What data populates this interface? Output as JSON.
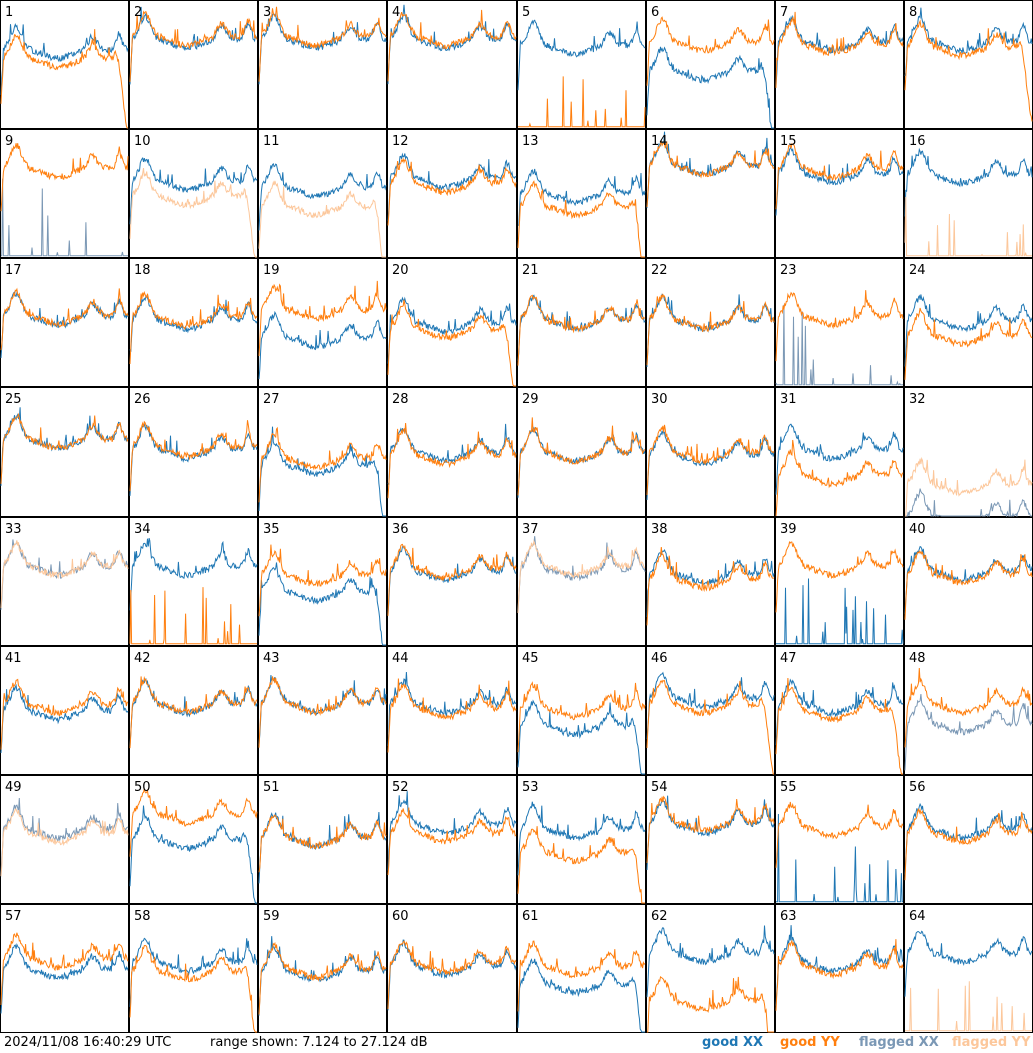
{
  "footer": {
    "timestamp": "2024/11/08 16:40:29 UTC",
    "range_text": "range shown: 7.124 to 27.124 dB"
  },
  "legend": [
    {
      "label": "good XX",
      "color": "#1f77b4"
    },
    {
      "label": "good YY",
      "color": "#ff7f0e"
    },
    {
      "label": "flagged XX",
      "color": "#7b98b5"
    },
    {
      "label": "flagged YY",
      "color": "#fcc79b"
    }
  ],
  "chart_data": {
    "type": "line",
    "grid_layout": {
      "rows": 8,
      "cols": 8
    },
    "ylim": [
      7.124,
      27.124
    ],
    "yunit": "dB",
    "series_names": [
      "good XX",
      "good YY",
      "flagged XX",
      "flagged YY"
    ],
    "colors": {
      "good_xx": "#1f77b4",
      "good_yy": "#ff7f0e",
      "flagged_xx": "#7b98b5",
      "flagged_yy": "#fcc79b"
    },
    "panels": [
      {
        "label": "1",
        "xx": "good",
        "yy": "good",
        "xx_level": 0.62,
        "yy_level": 0.55,
        "yy_rolloff": true
      },
      {
        "label": "2",
        "xx": "good",
        "yy": "good",
        "xx_level": 0.7,
        "yy_level": 0.72
      },
      {
        "label": "3",
        "xx": "good",
        "yy": "good",
        "xx_level": 0.7,
        "yy_level": 0.72
      },
      {
        "label": "4",
        "xx": "good",
        "yy": "good",
        "xx_level": 0.7,
        "yy_level": 0.72
      },
      {
        "label": "5",
        "xx": "good",
        "yy": "good",
        "xx_level": 0.65,
        "yy_level": 0.02,
        "yy_spikes": true
      },
      {
        "label": "6",
        "xx": "good",
        "yy": "good",
        "xx_level": 0.45,
        "yy_level": 0.68,
        "xx_rolloff": true
      },
      {
        "label": "7",
        "xx": "good",
        "yy": "good",
        "xx_level": 0.68,
        "yy_level": 0.66
      },
      {
        "label": "8",
        "xx": "good",
        "yy": "good",
        "xx_level": 0.68,
        "yy_level": 0.64,
        "yy_rolloff": true
      },
      {
        "label": "9",
        "xx": "flagged",
        "yy": "good",
        "xx_level": 0.05,
        "yy_level": 0.7,
        "xx_spikes": true
      },
      {
        "label": "10",
        "xx": "good",
        "yy": "flagged",
        "xx_level": 0.6,
        "yy_level": 0.48,
        "yy_rolloff": true
      },
      {
        "label": "11",
        "xx": "good",
        "yy": "flagged",
        "xx_level": 0.55,
        "yy_level": 0.4,
        "yy_rolloff": true
      },
      {
        "label": "12",
        "xx": "good",
        "yy": "good",
        "xx_level": 0.62,
        "yy_level": 0.58
      },
      {
        "label": "13",
        "xx": "good",
        "yy": "good",
        "xx_level": 0.5,
        "yy_level": 0.4,
        "yy_rolloff": true
      },
      {
        "label": "14",
        "xx": "good",
        "yy": "good",
        "xx_level": 0.72,
        "yy_level": 0.72
      },
      {
        "label": "15",
        "xx": "good",
        "yy": "good",
        "xx_level": 0.66,
        "yy_level": 0.7
      },
      {
        "label": "16",
        "xx": "good",
        "yy": "flagged",
        "xx_level": 0.65,
        "yy_level": 0.02,
        "yy_spikes": true
      },
      {
        "label": "17",
        "xx": "good",
        "yy": "good",
        "xx_level": 0.55,
        "yy_level": 0.56
      },
      {
        "label": "18",
        "xx": "good",
        "yy": "good",
        "xx_level": 0.52,
        "yy_level": 0.54
      },
      {
        "label": "19",
        "xx": "good",
        "yy": "good",
        "xx_level": 0.38,
        "yy_level": 0.6
      },
      {
        "label": "20",
        "xx": "good",
        "yy": "good",
        "xx_level": 0.5,
        "yy_level": 0.45,
        "yy_rolloff": true
      },
      {
        "label": "21",
        "xx": "good",
        "yy": "good",
        "xx_level": 0.52,
        "yy_level": 0.52
      },
      {
        "label": "22",
        "xx": "good",
        "yy": "good",
        "xx_level": 0.52,
        "yy_level": 0.52
      },
      {
        "label": "23",
        "xx": "flagged",
        "yy": "good",
        "xx_level": 0.05,
        "yy_level": 0.55,
        "xx_spikes": true
      },
      {
        "label": "24",
        "xx": "good",
        "yy": "good",
        "xx_level": 0.52,
        "yy_level": 0.4
      },
      {
        "label": "25",
        "xx": "good",
        "yy": "good",
        "xx_level": 0.6,
        "yy_level": 0.6
      },
      {
        "label": "26",
        "xx": "good",
        "yy": "good",
        "xx_level": 0.52,
        "yy_level": 0.54
      },
      {
        "label": "27",
        "xx": "good",
        "yy": "good",
        "xx_level": 0.4,
        "yy_level": 0.45,
        "xx_rolloff": true
      },
      {
        "label": "28",
        "xx": "good",
        "yy": "good",
        "xx_level": 0.5,
        "yy_level": 0.48
      },
      {
        "label": "29",
        "xx": "good",
        "yy": "good",
        "xx_level": 0.5,
        "yy_level": 0.5
      },
      {
        "label": "30",
        "xx": "good",
        "yy": "good",
        "xx_level": 0.48,
        "yy_level": 0.5
      },
      {
        "label": "31",
        "xx": "good",
        "yy": "good",
        "xx_level": 0.52,
        "yy_level": 0.32
      },
      {
        "label": "32",
        "xx": "flagged",
        "yy": "flagged",
        "xx_level": 0.0,
        "yy_level": 0.25
      },
      {
        "label": "33",
        "xx": "flagged",
        "yy": "flagged",
        "xx_level": 0.62,
        "yy_level": 0.62
      },
      {
        "label": "34",
        "xx": "good",
        "yy": "good",
        "xx_level": 0.62,
        "yy_level": 0.03,
        "yy_spikes": true
      },
      {
        "label": "35",
        "xx": "good",
        "yy": "good",
        "xx_level": 0.42,
        "yy_level": 0.55,
        "xx_rolloff": true
      },
      {
        "label": "36",
        "xx": "good",
        "yy": "good",
        "xx_level": 0.58,
        "yy_level": 0.6
      },
      {
        "label": "37",
        "xx": "flagged",
        "yy": "flagged",
        "xx_level": 0.6,
        "yy_level": 0.62
      },
      {
        "label": "38",
        "xx": "good",
        "yy": "good",
        "xx_level": 0.56,
        "yy_level": 0.52
      },
      {
        "label": "39",
        "xx": "good",
        "yy": "good",
        "xx_level": 0.03,
        "yy_level": 0.62,
        "xx_spikes": true
      },
      {
        "label": "40",
        "xx": "good",
        "yy": "good",
        "xx_level": 0.58,
        "yy_level": 0.56
      },
      {
        "label": "41",
        "xx": "good",
        "yy": "good",
        "xx_level": 0.5,
        "yy_level": 0.55
      },
      {
        "label": "42",
        "xx": "good",
        "yy": "good",
        "xx_level": 0.55,
        "yy_level": 0.56
      },
      {
        "label": "43",
        "xx": "good",
        "yy": "good",
        "xx_level": 0.56,
        "yy_level": 0.56
      },
      {
        "label": "44",
        "xx": "good",
        "yy": "good",
        "xx_level": 0.55,
        "yy_level": 0.52
      },
      {
        "label": "45",
        "xx": "good",
        "yy": "good",
        "xx_level": 0.38,
        "yy_level": 0.52,
        "xx_rolloff": true
      },
      {
        "label": "46",
        "xx": "good",
        "yy": "good",
        "xx_level": 0.6,
        "yy_level": 0.55,
        "yy_rolloff": true
      },
      {
        "label": "47",
        "xx": "good",
        "yy": "good",
        "xx_level": 0.55,
        "yy_level": 0.5,
        "yy_rolloff": true
      },
      {
        "label": "48",
        "xx": "flagged",
        "yy": "good",
        "xx_level": 0.4,
        "yy_level": 0.55
      },
      {
        "label": "49",
        "xx": "flagged",
        "yy": "flagged",
        "xx_level": 0.58,
        "yy_level": 0.55
      },
      {
        "label": "50",
        "xx": "good",
        "yy": "good",
        "xx_level": 0.5,
        "yy_level": 0.7,
        "xx_rolloff": true
      },
      {
        "label": "51",
        "xx": "good",
        "yy": "good",
        "xx_level": 0.52,
        "yy_level": 0.52
      },
      {
        "label": "52",
        "xx": "good",
        "yy": "good",
        "xx_level": 0.62,
        "yy_level": 0.55
      },
      {
        "label": "53",
        "xx": "good",
        "yy": "good",
        "xx_level": 0.58,
        "yy_level": 0.4,
        "yy_rolloff": true
      },
      {
        "label": "54",
        "xx": "good",
        "yy": "good",
        "xx_level": 0.62,
        "yy_level": 0.64
      },
      {
        "label": "55",
        "xx": "good",
        "yy": "good",
        "xx_level": 0.03,
        "yy_level": 0.6,
        "xx_spikes": true
      },
      {
        "label": "56",
        "xx": "good",
        "yy": "good",
        "xx_level": 0.58,
        "yy_level": 0.55
      },
      {
        "label": "57",
        "xx": "good",
        "yy": "good",
        "xx_level": 0.5,
        "yy_level": 0.58
      },
      {
        "label": "58",
        "xx": "good",
        "yy": "good",
        "xx_level": 0.55,
        "yy_level": 0.48,
        "yy_rolloff": true
      },
      {
        "label": "59",
        "xx": "good",
        "yy": "good",
        "xx_level": 0.48,
        "yy_level": 0.5
      },
      {
        "label": "60",
        "xx": "good",
        "yy": "good",
        "xx_level": 0.52,
        "yy_level": 0.54
      },
      {
        "label": "61",
        "xx": "good",
        "yy": "good",
        "xx_level": 0.38,
        "yy_level": 0.52,
        "xx_rolloff": true
      },
      {
        "label": "62",
        "xx": "good",
        "yy": "good",
        "xx_level": 0.62,
        "yy_level": 0.25,
        "yy_rolloff": true
      },
      {
        "label": "63",
        "xx": "good",
        "yy": "good",
        "xx_level": 0.55,
        "yy_level": 0.52
      },
      {
        "label": "64",
        "xx": "good",
        "yy": "flagged",
        "xx_level": 0.62,
        "yy_level": 0.02,
        "yy_spikes": true
      }
    ]
  }
}
